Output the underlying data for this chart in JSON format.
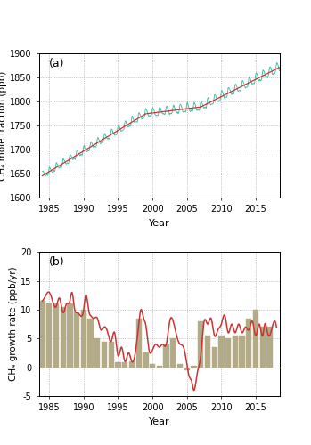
{
  "title_a": "(a)",
  "title_b": "(b)",
  "xlabel": "Year",
  "ylabel_a": "CH₄ mole fraction (ppb)",
  "ylabel_b": "CH₄ growth rate (ppb/yr)",
  "xlim": [
    1983.5,
    2018.5
  ],
  "ylim_a": [
    1600,
    1900
  ],
  "ylim_b": [
    -5,
    20
  ],
  "yticks_a": [
    1600,
    1650,
    1700,
    1750,
    1800,
    1850,
    1900
  ],
  "yticks_b": [
    -5,
    0,
    5,
    10,
    15,
    20
  ],
  "xticks": [
    1985,
    1990,
    1995,
    2000,
    2005,
    2010,
    2015
  ],
  "trend_color": "#cc3333",
  "seasonal_color": "#2db89e",
  "bar_color": "#b3aa88",
  "background_color": "#ffffff",
  "grid_color": "#999999",
  "bar_years": [
    1984,
    1985,
    1986,
    1987,
    1988,
    1989,
    1990,
    1991,
    1992,
    1993,
    1994,
    1995,
    1996,
    1997,
    1998,
    1999,
    2000,
    2001,
    2002,
    2003,
    2004,
    2005,
    2006,
    2007,
    2008,
    2009,
    2010,
    2011,
    2012,
    2013,
    2014,
    2015,
    2016,
    2017
  ],
  "bar_vals": [
    11.5,
    11.0,
    11.0,
    10.5,
    11.0,
    9.5,
    10.0,
    8.5,
    5.0,
    4.5,
    4.5,
    0.8,
    0.8,
    1.0,
    8.5,
    2.5,
    0.5,
    0.2,
    4.0,
    5.0,
    0.5,
    -0.5,
    0.2,
    8.0,
    5.5,
    3.5,
    5.5,
    5.0,
    5.5,
    5.5,
    8.5,
    10.0,
    7.0,
    7.0
  ],
  "growth_t": [
    1984.0,
    1984.5,
    1985.0,
    1985.5,
    1986.0,
    1986.5,
    1987.0,
    1987.5,
    1988.0,
    1988.3,
    1988.7,
    1989.0,
    1989.5,
    1990.0,
    1990.3,
    1990.8,
    1991.0,
    1991.5,
    1992.0,
    1992.5,
    1993.0,
    1993.5,
    1994.0,
    1994.5,
    1995.0,
    1995.5,
    1996.0,
    1996.5,
    1997.0,
    1997.5,
    1998.0,
    1998.3,
    1998.7,
    1999.0,
    1999.5,
    2000.0,
    2000.5,
    2001.0,
    2001.5,
    2002.0,
    2002.5,
    2003.0,
    2003.5,
    2004.0,
    2004.5,
    2005.0,
    2005.3,
    2005.7,
    2006.0,
    2006.5,
    2007.0,
    2007.5,
    2008.0,
    2008.5,
    2009.0,
    2009.5,
    2010.0,
    2010.5,
    2011.0,
    2011.5,
    2012.0,
    2012.5,
    2013.0,
    2013.5,
    2014.0,
    2014.5,
    2015.0,
    2015.5,
    2016.0,
    2016.3,
    2016.7,
    2017.0,
    2017.5,
    2018.0
  ],
  "growth_vals": [
    11.5,
    12.5,
    13.0,
    11.5,
    10.5,
    12.0,
    9.5,
    11.0,
    11.5,
    13.0,
    10.0,
    9.5,
    9.0,
    10.0,
    12.5,
    9.5,
    9.0,
    8.5,
    8.5,
    6.5,
    7.0,
    6.0,
    4.5,
    6.0,
    2.0,
    3.5,
    1.0,
    2.5,
    1.0,
    2.5,
    7.5,
    10.0,
    8.5,
    7.5,
    3.0,
    3.0,
    4.0,
    3.5,
    4.0,
    4.0,
    8.0,
    8.0,
    5.5,
    4.0,
    3.5,
    0.5,
    -1.5,
    -2.5,
    -4.0,
    -1.0,
    2.0,
    8.0,
    7.5,
    8.5,
    5.5,
    6.5,
    7.5,
    9.0,
    6.0,
    7.5,
    6.0,
    7.5,
    6.0,
    7.0,
    6.5,
    8.0,
    5.5,
    7.5,
    5.5,
    7.5,
    6.0,
    5.5,
    7.5,
    7.0
  ]
}
